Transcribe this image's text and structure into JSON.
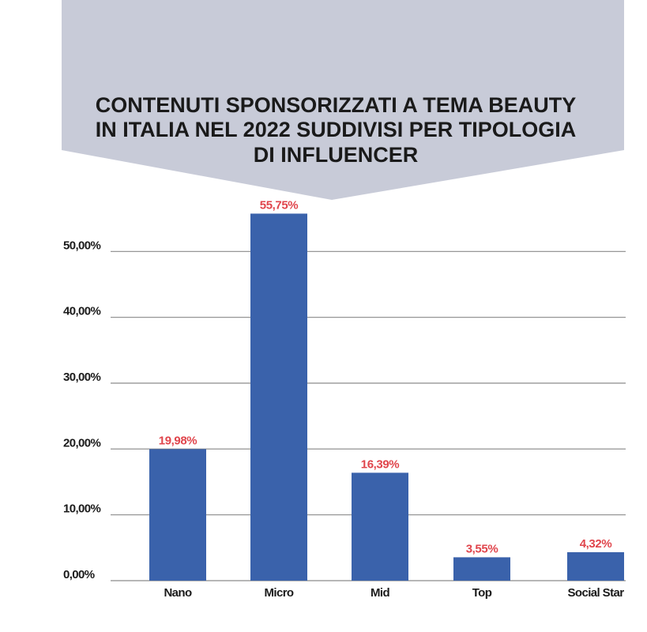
{
  "colors": {
    "banner": "#c8cbd8",
    "bar": "#3a62ab",
    "data_label": "#e0454c",
    "grid": "#8a8a8a"
  },
  "chart_data": {
    "type": "bar",
    "title_lines": [
      "CONTENUTI SPONSORIZZATI A TEMA BEAUTY",
      "IN ITALIA NEL 2022 SUDDIVISI PER TIPOLOGIA",
      "DI INFLUENCER"
    ],
    "categories": [
      "Nano",
      "Micro",
      "Mid",
      "Top",
      "Social Star"
    ],
    "values": [
      19.98,
      55.75,
      16.39,
      3.55,
      4.32
    ],
    "data_labels": [
      "19,98%",
      "55,75%",
      "16,39%",
      "3,55%",
      "4,32%"
    ],
    "yticks": [
      0,
      10,
      20,
      30,
      40,
      50
    ],
    "ytick_labels": [
      "0,00%",
      "10,00%",
      "20,00%",
      "30,00%",
      "40,00%",
      "50,00%"
    ],
    "ylim": [
      0,
      60
    ],
    "grid": true,
    "legend": "none"
  }
}
